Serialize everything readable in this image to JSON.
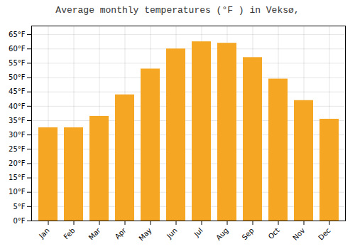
{
  "chart_data": {
    "type": "bar",
    "title": "Average monthly temperatures (°F ) in Veksø,",
    "categories": [
      "Jan",
      "Feb",
      "Mar",
      "Apr",
      "May",
      "Jun",
      "Jul",
      "Aug",
      "Sep",
      "Oct",
      "Nov",
      "Dec"
    ],
    "values": [
      32.5,
      32.5,
      36.5,
      44.0,
      53.0,
      60.0,
      62.5,
      62.0,
      57.0,
      49.5,
      42.0,
      35.5
    ],
    "color": "#F5A623",
    "ylim": [
      0,
      68
    ],
    "yticks": [
      {
        "value": 0,
        "label": "0°F"
      },
      {
        "value": 5,
        "label": "5°F"
      },
      {
        "value": 10,
        "label": "10°F"
      },
      {
        "value": 15,
        "label": "15°F"
      },
      {
        "value": 20,
        "label": "20°F"
      },
      {
        "value": 25,
        "label": "25°F"
      },
      {
        "value": 30,
        "label": "30°F"
      },
      {
        "value": 35,
        "label": "35°F"
      },
      {
        "value": 40,
        "label": "40°F"
      },
      {
        "value": 45,
        "label": "45°F"
      },
      {
        "value": 50,
        "label": "50°F"
      },
      {
        "value": 55,
        "label": "55°F"
      },
      {
        "value": 60,
        "label": "60°F"
      },
      {
        "value": 65,
        "label": "65°F"
      }
    ],
    "grid": true
  }
}
